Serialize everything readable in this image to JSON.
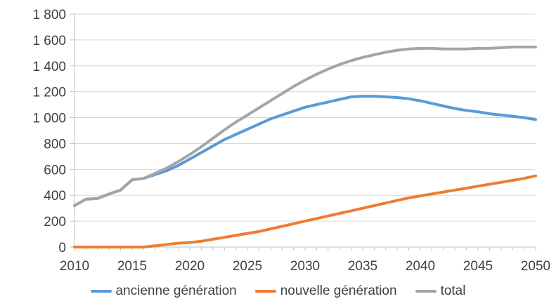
{
  "chart_data": {
    "type": "line",
    "x": [
      2010,
      2011,
      2012,
      2013,
      2014,
      2015,
      2016,
      2017,
      2018,
      2019,
      2020,
      2021,
      2022,
      2023,
      2024,
      2025,
      2026,
      2027,
      2028,
      2029,
      2030,
      2031,
      2032,
      2033,
      2034,
      2035,
      2036,
      2037,
      2038,
      2039,
      2040,
      2041,
      2042,
      2043,
      2044,
      2045,
      2046,
      2047,
      2048,
      2049,
      2050
    ],
    "x_ticks": [
      "2010",
      "2015",
      "2020",
      "2025",
      "2030",
      "2035",
      "2040",
      "2045",
      "2050"
    ],
    "y_ticks": [
      "0",
      "200",
      "400",
      "600",
      "800",
      "1 000",
      "1 200",
      "1 400",
      "1 600",
      "1 800"
    ],
    "ylim": [
      0,
      1800
    ],
    "xlim": [
      2010,
      2050
    ],
    "grid": "horizontal",
    "legend_position": "bottom",
    "series": [
      {
        "name": "ancienne génération",
        "color": "#5b9bd5",
        "values": [
          320,
          370,
          375,
          410,
          440,
          520,
          530,
          560,
          590,
          630,
          680,
          730,
          780,
          830,
          870,
          910,
          950,
          990,
          1020,
          1050,
          1080,
          1100,
          1120,
          1140,
          1160,
          1165,
          1165,
          1160,
          1155,
          1145,
          1130,
          1110,
          1090,
          1070,
          1055,
          1045,
          1030,
          1020,
          1010,
          1000,
          985
        ]
      },
      {
        "name": "nouvelle génération",
        "color": "#ed7d31",
        "values": [
          0,
          0,
          0,
          0,
          0,
          0,
          0,
          10,
          20,
          30,
          35,
          45,
          60,
          75,
          90,
          105,
          120,
          140,
          160,
          180,
          200,
          220,
          240,
          260,
          280,
          300,
          320,
          340,
          360,
          380,
          395,
          410,
          425,
          440,
          455,
          470,
          485,
          500,
          515,
          530,
          550
        ]
      },
      {
        "name": "total",
        "color": "#a5a5a5",
        "values": [
          320,
          370,
          375,
          410,
          440,
          520,
          530,
          570,
          610,
          660,
          715,
          775,
          840,
          905,
          965,
          1020,
          1075,
          1130,
          1185,
          1240,
          1290,
          1335,
          1375,
          1410,
          1440,
          1465,
          1485,
          1505,
          1520,
          1530,
          1535,
          1535,
          1530,
          1530,
          1530,
          1535,
          1535,
          1540,
          1545,
          1545,
          1545
        ]
      }
    ]
  }
}
